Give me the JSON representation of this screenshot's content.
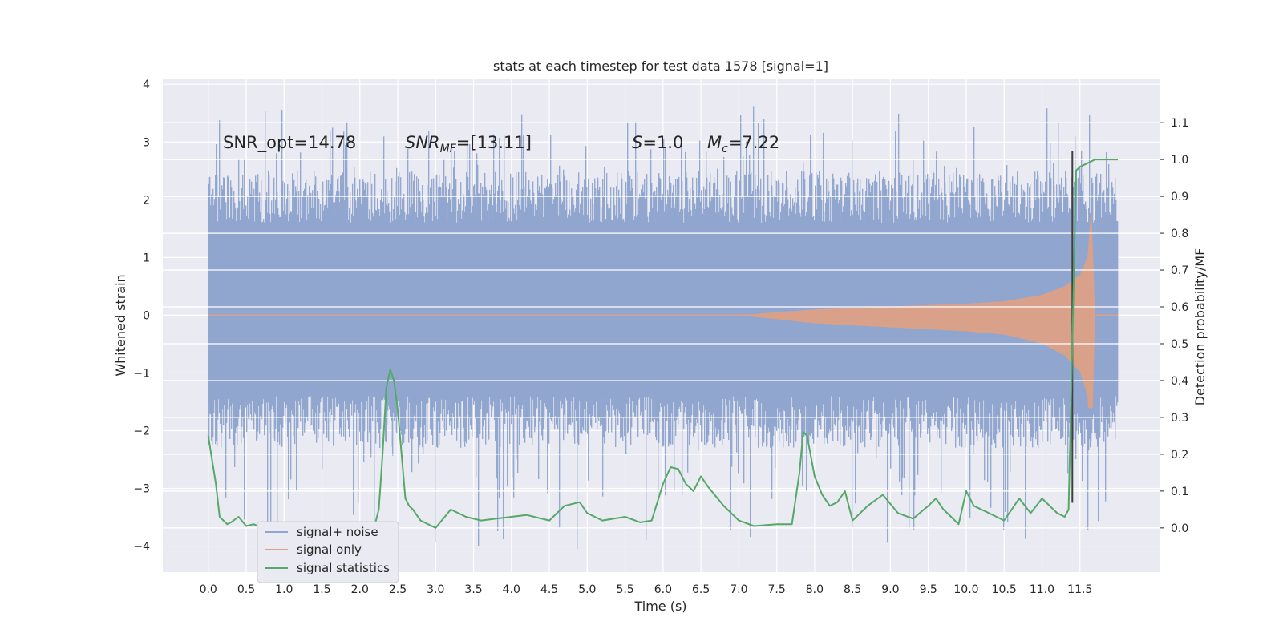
{
  "chart_data": {
    "type": "line",
    "title": "stats at each timestep for test data 1578 [signal=1]",
    "xlabel": "Time (s)",
    "ylabel": "Whitened strain",
    "y2label": "Detection probability/MF",
    "xlim": [
      -0.6,
      12.55
    ],
    "ylim": [
      -4.45,
      4.1
    ],
    "y2lim": [
      -0.12,
      1.22
    ],
    "x_ticks": [
      "0.0",
      "0.5",
      "1.0",
      "1.5",
      "2.0",
      "2.5",
      "3.0",
      "3.5",
      "4.0",
      "4.5",
      "5.0",
      "5.5",
      "6.0",
      "6.5",
      "7.0",
      "7.5",
      "8.0",
      "8.5",
      "9.0",
      "9.5",
      "10.0",
      "10.5",
      "11.0",
      "11.5"
    ],
    "y_ticks": [
      "−4",
      "−3",
      "−2",
      "−1",
      "0",
      "1",
      "2",
      "3",
      "4"
    ],
    "y2_ticks": [
      "0.0",
      "0.1",
      "0.2",
      "0.3",
      "0.4",
      "0.5",
      "0.6",
      "0.7",
      "0.8",
      "0.9",
      "1.0",
      "1.1"
    ],
    "grid": true,
    "legend_position": "lower-left",
    "annotations": {
      "snr_opt": "SNR_opt=14.78",
      "snr_mf_main": "SNR",
      "snr_mf_sub": "MF",
      "snr_mf_value": "=[13.11]",
      "s_label": "S",
      "s_value": "=1.0",
      "mc_label": "M",
      "mc_sub": "c",
      "mc_value": "=7.22"
    },
    "marker_time": 11.4,
    "series": [
      {
        "name": "signal+ noise",
        "color": "#91a6cf",
        "kind": "noise",
        "x_range": [
          0.0,
          12.0
        ],
        "typical_band": [
          -1.4,
          1.6
        ],
        "extremes": [
          -4.05,
          3.7
        ]
      },
      {
        "name": "signal only",
        "color": "#dd9f86",
        "kind": "chirp",
        "envelope": {
          "x": [
            0.0,
            7.0,
            7.5,
            8.0,
            9.0,
            10.0,
            10.5,
            11.0,
            11.3,
            11.5,
            11.6,
            11.65,
            11.7,
            12.0
          ],
          "amplitude": [
            0.0,
            0.0,
            0.05,
            0.1,
            0.15,
            0.2,
            0.24,
            0.35,
            0.5,
            0.7,
            1.0,
            1.9,
            0.0,
            0.0
          ]
        }
      },
      {
        "name": "signal statistics",
        "color": "#55a868",
        "kind": "line",
        "x": [
          0.0,
          0.1,
          0.15,
          0.25,
          0.3,
          0.4,
          0.5,
          0.6,
          0.7,
          0.8,
          1.0,
          1.2,
          1.5,
          1.8,
          2.0,
          2.1,
          2.2,
          2.25,
          2.3,
          2.35,
          2.4,
          2.45,
          2.5,
          2.55,
          2.6,
          2.65,
          2.7,
          2.8,
          3.0,
          3.2,
          3.4,
          3.6,
          3.8,
          4.0,
          4.2,
          4.5,
          4.7,
          4.9,
          5.0,
          5.2,
          5.5,
          5.7,
          5.85,
          6.0,
          6.1,
          6.2,
          6.3,
          6.4,
          6.5,
          6.6,
          6.8,
          7.0,
          7.2,
          7.5,
          7.7,
          7.8,
          7.85,
          7.9,
          8.0,
          8.1,
          8.2,
          8.3,
          8.4,
          8.5,
          8.7,
          8.9,
          9.1,
          9.3,
          9.5,
          9.6,
          9.7,
          9.8,
          9.9,
          10.0,
          10.1,
          10.3,
          10.5,
          10.7,
          10.85,
          11.0,
          11.2,
          11.3,
          11.35,
          11.4,
          11.45,
          11.5,
          11.6,
          11.7,
          11.8,
          11.9,
          12.0
        ],
        "values": [
          0.25,
          0.12,
          0.03,
          0.01,
          0.015,
          0.03,
          0.005,
          0.01,
          0.0,
          0.005,
          0.005,
          0.0,
          0.005,
          0.01,
          0.01,
          0.005,
          0.01,
          0.05,
          0.2,
          0.38,
          0.43,
          0.4,
          0.32,
          0.2,
          0.08,
          0.06,
          0.05,
          0.02,
          0.0,
          0.05,
          0.03,
          0.02,
          0.025,
          0.03,
          0.035,
          0.02,
          0.06,
          0.07,
          0.04,
          0.02,
          0.03,
          0.015,
          0.02,
          0.12,
          0.165,
          0.16,
          0.12,
          0.1,
          0.14,
          0.11,
          0.06,
          0.02,
          0.005,
          0.01,
          0.01,
          0.15,
          0.26,
          0.25,
          0.14,
          0.09,
          0.06,
          0.07,
          0.1,
          0.02,
          0.06,
          0.09,
          0.04,
          0.025,
          0.06,
          0.08,
          0.05,
          0.03,
          0.01,
          0.1,
          0.06,
          0.04,
          0.02,
          0.08,
          0.04,
          0.08,
          0.04,
          0.03,
          0.05,
          0.5,
          0.97,
          0.98,
          0.99,
          1.0,
          1.0,
          1.0,
          1.0
        ]
      }
    ]
  }
}
